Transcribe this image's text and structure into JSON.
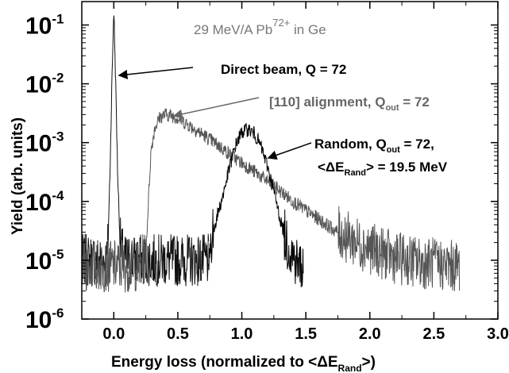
{
  "chart_data": {
    "type": "line",
    "title": "",
    "xlabel": "Energy loss (normalized to <ΔE",
    "xlabel_sub": "Rand",
    "xlabel_tail": ">)",
    "ylabel": "Yield (arb. units)",
    "xlim": [
      -0.25,
      3.0
    ],
    "ylim": [
      1e-06,
      0.25
    ],
    "yscale": "log",
    "grid": false,
    "x_ticks": [
      "0.0",
      "0.5",
      "1.0",
      "1.5",
      "2.0",
      "2.5",
      "3.0"
    ],
    "y_ticks": [
      {
        "base": "10",
        "exp": "-6"
      },
      {
        "base": "10",
        "exp": "-5"
      },
      {
        "base": "10",
        "exp": "-4"
      },
      {
        "base": "10",
        "exp": "-3"
      },
      {
        "base": "10",
        "exp": "-2"
      },
      {
        "base": "10",
        "exp": "-1"
      }
    ],
    "annotations": {
      "experiment": {
        "pre": "29 MeV/A Pb",
        "sup": "72+",
        "post": " in Ge"
      },
      "direct": {
        "text": "Direct beam, Q = 72"
      },
      "aligned": {
        "pre": "[110] alignment, Q",
        "sub": "out",
        "post": " = 72"
      },
      "random": {
        "pre": "Random, Q",
        "sub": "out",
        "post": " = 72,"
      },
      "random2": {
        "pre": "<ΔE",
        "sub": "Rand",
        "post": "> = 19.5 MeV"
      }
    },
    "series": [
      {
        "color": "#111111",
        "x": [
          -0.25,
          -0.1,
          -0.05,
          -0.03,
          -0.015,
          0.0,
          0.015,
          0.03,
          0.05,
          0.08,
          0.1,
          0.15,
          0.3,
          0.5,
          0.7,
          0.74
        ],
        "y": [
          1e-05,
          1e-05,
          1e-05,
          0.0003,
          0.01,
          0.2,
          0.01,
          0.0003,
          2e-05,
          1e-05,
          1e-05,
          1e-05,
          1e-05,
          1e-05,
          1e-05,
          1e-05
        ]
      },
      {
        "color": "#555555",
        "x": [
          -0.25,
          0.2,
          0.25,
          0.27,
          0.29,
          0.32,
          0.36,
          0.4,
          0.45,
          0.5,
          0.6,
          0.7,
          0.8,
          0.9,
          1.0,
          1.1,
          1.2,
          1.3,
          1.4,
          1.5,
          1.6,
          1.7,
          1.8,
          1.9,
          2.0,
          2.1,
          2.2,
          2.3,
          2.4,
          2.5,
          2.6,
          2.7
        ],
        "y": [
          8e-06,
          8e-06,
          1.2e-05,
          0.0001,
          0.0007,
          0.0018,
          0.0027,
          0.003,
          0.0029,
          0.0026,
          0.0019,
          0.00135,
          0.00095,
          0.00065,
          0.00045,
          0.00032,
          0.00022,
          0.00015,
          0.0001,
          7e-05,
          5e-05,
          3.5e-05,
          2.6e-05,
          2e-05,
          1.6e-05,
          1.3e-05,
          1.1e-05,
          1e-05,
          9e-06,
          9e-06,
          8e-06,
          8e-06
        ]
      },
      {
        "color": "#000000",
        "x": [
          0.74,
          0.76,
          0.8,
          0.85,
          0.9,
          0.95,
          1.0,
          1.05,
          1.1,
          1.15,
          1.2,
          1.25,
          1.3,
          1.35,
          1.4,
          1.45,
          1.48
        ],
        "y": [
          1e-05,
          2e-05,
          5e-05,
          0.00012,
          0.00035,
          0.0009,
          0.0015,
          0.0017,
          0.0014,
          0.00085,
          0.0004,
          0.00015,
          5e-05,
          2e-05,
          1.2e-05,
          8e-06,
          8e-06
        ]
      }
    ]
  }
}
